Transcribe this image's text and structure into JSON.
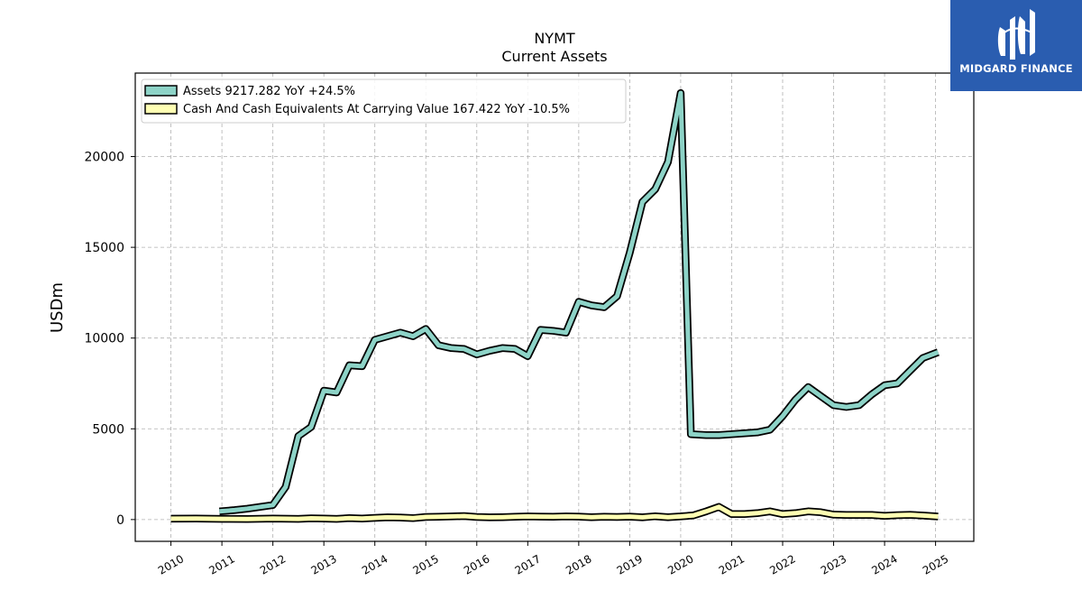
{
  "colors": {
    "assets": "#8dd3c7",
    "cash": "#ffffb3",
    "outline": "#000000",
    "grid": "#b0b0b0",
    "logo_bg": "#2a5db0"
  },
  "logo": {
    "text": "MIDGARD FINANCE",
    "icon": "midgard-logo-icon"
  },
  "chart_data": {
    "type": "line",
    "title": "NYMT",
    "subtitle": "Current  Assets",
    "xlabel": "",
    "ylabel": "USDm",
    "xlim": [
      2009.3,
      2025.75
    ],
    "ylim": [
      -1200,
      24600
    ],
    "yticks": [
      0,
      5000,
      10000,
      15000,
      20000
    ],
    "xticks": [
      2010,
      2011,
      2012,
      2013,
      2014,
      2015,
      2016,
      2017,
      2018,
      2019,
      2020,
      2021,
      2022,
      2023,
      2024,
      2025
    ],
    "grid": true,
    "legend_position": "upper-left",
    "series": [
      {
        "name": "Assets  9217.282 YoY +24.5%",
        "x": [
          2010.95,
          2011.25,
          2011.5,
          2011.75,
          2012.0,
          2012.25,
          2012.5,
          2012.75,
          2013.0,
          2013.25,
          2013.5,
          2013.75,
          2014.0,
          2014.25,
          2014.5,
          2014.75,
          2015.0,
          2015.25,
          2015.5,
          2015.75,
          2016.0,
          2016.25,
          2016.5,
          2016.75,
          2017.0,
          2017.25,
          2017.5,
          2017.75,
          2018.0,
          2018.25,
          2018.5,
          2018.75,
          2019.0,
          2019.25,
          2019.5,
          2019.75,
          2020.0,
          2020.2,
          2020.5,
          2020.75,
          2021.0,
          2021.25,
          2021.5,
          2021.75,
          2022.0,
          2022.25,
          2022.5,
          2022.75,
          2023.0,
          2023.25,
          2023.5,
          2023.75,
          2024.0,
          2024.25,
          2024.5,
          2024.75,
          2025.05
        ],
        "values": [
          450,
          520,
          600,
          700,
          800,
          1800,
          4600,
          5100,
          7100,
          7000,
          8500,
          8450,
          9900,
          10100,
          10300,
          10100,
          10500,
          9600,
          9450,
          9400,
          9100,
          9300,
          9450,
          9400,
          9000,
          10450,
          10400,
          10300,
          12000,
          11800,
          11700,
          12300,
          14700,
          17500,
          18200,
          19700,
          23500,
          4700,
          4650,
          4650,
          4700,
          4750,
          4800,
          4950,
          5700,
          6600,
          7300,
          6800,
          6300,
          6200,
          6300,
          6900,
          7400,
          7500,
          8200,
          8900,
          9217
        ]
      },
      {
        "name": "Cash And Cash Equivalents At Carrying Value  167.422 YoY -10.5%",
        "x": [
          2010.0,
          2010.5,
          2011.0,
          2011.5,
          2012.0,
          2012.5,
          2012.75,
          2013.0,
          2013.25,
          2013.5,
          2013.75,
          2014.0,
          2014.25,
          2014.5,
          2014.75,
          2015.0,
          2015.25,
          2015.5,
          2015.75,
          2016.0,
          2016.25,
          2016.5,
          2016.75,
          2017.0,
          2017.25,
          2017.5,
          2017.75,
          2018.0,
          2018.25,
          2018.5,
          2018.75,
          2019.0,
          2019.25,
          2019.5,
          2019.75,
          2020.0,
          2020.25,
          2020.5,
          2020.75,
          2021.0,
          2021.25,
          2021.5,
          2021.75,
          2022.0,
          2022.25,
          2022.5,
          2022.75,
          2023.0,
          2023.25,
          2023.5,
          2023.75,
          2024.0,
          2024.25,
          2024.5,
          2024.75,
          2025.05
        ],
        "values": [
          50,
          60,
          40,
          30,
          60,
          40,
          70,
          60,
          40,
          80,
          60,
          90,
          120,
          110,
          80,
          140,
          150,
          170,
          190,
          140,
          120,
          130,
          150,
          170,
          160,
          150,
          170,
          160,
          130,
          150,
          140,
          160,
          120,
          180,
          130,
          170,
          230,
          450,
          700,
          300,
          300,
          350,
          450,
          300,
          350,
          450,
          400,
          270,
          250,
          250,
          250,
          200,
          240,
          260,
          220,
          167
        ]
      }
    ]
  }
}
